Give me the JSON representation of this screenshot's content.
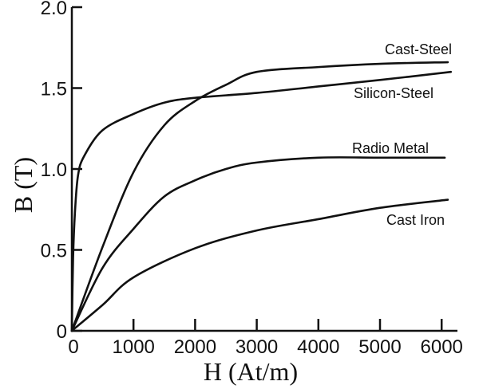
{
  "chart_data": {
    "type": "line",
    "title": "",
    "xlabel": "H (At/m)",
    "ylabel": "B (T)",
    "xlim": [
      0,
      6500
    ],
    "ylim": [
      0,
      2.0
    ],
    "x_ticks": [
      0,
      1000,
      2000,
      3000,
      4000,
      5000,
      6000
    ],
    "x_tick_labels": [
      "0",
      "1000",
      "2000",
      "3000",
      "4000",
      "5000",
      "6000"
    ],
    "y_ticks": [
      0,
      0.5,
      1.0,
      1.5,
      2.0
    ],
    "y_tick_labels": [
      "0",
      "0.5",
      "1.0",
      "1.5",
      "2.0"
    ],
    "grid": false,
    "legend": "inline labels at right end of each curve",
    "series": [
      {
        "name": "Cast-Steel",
        "x": [
          0,
          500,
          1000,
          1500,
          2000,
          2500,
          3000,
          4000,
          5000,
          6100
        ],
        "y": [
          0,
          0.52,
          0.98,
          1.27,
          1.42,
          1.52,
          1.6,
          1.63,
          1.65,
          1.66
        ]
      },
      {
        "name": "Silicon-Steel",
        "x": [
          0,
          20,
          50,
          100,
          200,
          500,
          1000,
          1500,
          2000,
          3000,
          4000,
          5000,
          6150
        ],
        "y": [
          0,
          0.45,
          0.73,
          0.96,
          1.08,
          1.24,
          1.34,
          1.41,
          1.44,
          1.47,
          1.51,
          1.55,
          1.6
        ]
      },
      {
        "name": "Radio Metal",
        "x": [
          0,
          500,
          1000,
          1500,
          2000,
          2500,
          3000,
          4000,
          5000,
          6050
        ],
        "y": [
          0,
          0.39,
          0.63,
          0.83,
          0.93,
          1.0,
          1.04,
          1.07,
          1.07,
          1.07
        ]
      },
      {
        "name": "Cast Iron",
        "x": [
          0,
          500,
          1000,
          2000,
          3000,
          4000,
          5000,
          6100
        ],
        "y": [
          0,
          0.16,
          0.33,
          0.51,
          0.62,
          0.69,
          0.76,
          0.81
        ]
      }
    ]
  }
}
